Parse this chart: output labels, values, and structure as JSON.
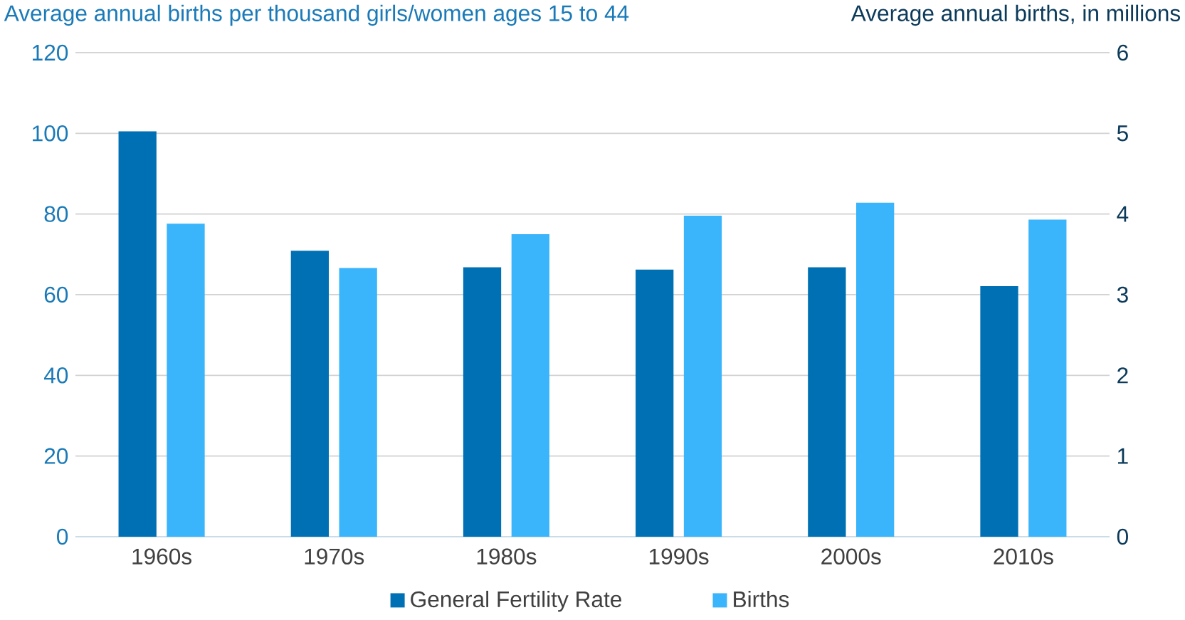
{
  "chart_data": {
    "type": "bar",
    "ylabel": "Average annual births per thousand girls/women ages 15 to 44",
    "y2label": "Average annual births, in millions",
    "categories": [
      "1960s",
      "1970s",
      "1980s",
      "1990s",
      "2000s",
      "2010s"
    ],
    "series": [
      {
        "name": "General Fertility Rate",
        "color": "#0070b4",
        "values": [
          100.5,
          70.9,
          66.8,
          66.2,
          66.8,
          62.1
        ]
      },
      {
        "name": "Births",
        "color": "#3ab4fb",
        "axis": "y2",
        "values": [
          3.88,
          3.33,
          3.75,
          3.98,
          4.14,
          3.93
        ]
      }
    ],
    "ylim": [
      0,
      120
    ],
    "yticks": [
      0,
      20,
      40,
      60,
      80,
      100,
      120
    ],
    "y2lim": [
      0,
      6
    ],
    "y2ticks": [
      0,
      1,
      2,
      3,
      4,
      5,
      6
    ],
    "grid": "y",
    "legend": "bottom"
  }
}
